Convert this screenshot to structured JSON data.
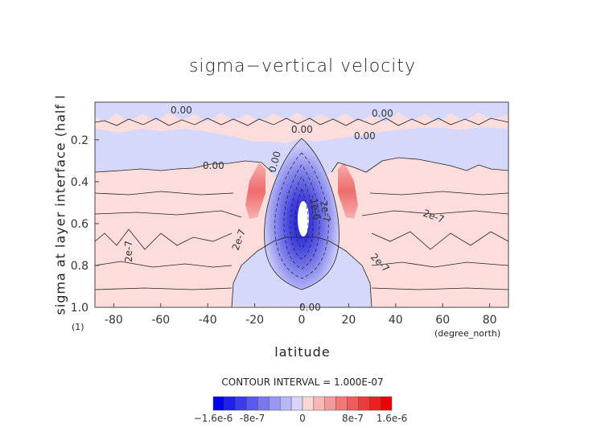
{
  "chart_data": {
    "type": "heatmap",
    "title": "sigma−vertical velocity",
    "xlabel": "latitude",
    "xunit": "(degree_north)",
    "ylabel": "sigma at layer interface (half l",
    "yunit": "(1)",
    "xlim": [
      -88,
      88
    ],
    "ylim": [
      1.0,
      0.02
    ],
    "xticks": [
      "-80",
      "-60",
      "-40",
      "-20",
      "0",
      "20",
      "40",
      "60",
      "80"
    ],
    "xtick_values": [
      -80,
      -60,
      -40,
      -20,
      0,
      20,
      40,
      60,
      80
    ],
    "yticks": [
      "0.2",
      "0.4",
      "0.6",
      "0.8",
      "1.0"
    ],
    "ytick_values": [
      0.2,
      0.4,
      0.6,
      0.8,
      1.0
    ],
    "contour_labels": [
      "0.00",
      "0.00",
      "0.00",
      "0.00",
      "0.00",
      "0.00",
      "0.00",
      "2e-7",
      "2e-7",
      "2e-7",
      "2e-7",
      "2e-7",
      "-1e-6"
    ],
    "contour_interval": "CONTOUR INTERVAL = 1.000E-07",
    "colorbar": {
      "labels": [
        "−1.6e-6",
        "-8e-7",
        "0",
        "8e-7",
        "1.6e-6"
      ],
      "colors": [
        "#0000ee",
        "#1f1fee",
        "#3b3bee",
        "#5a5af0",
        "#7878f2",
        "#9999f5",
        "#b8b8f8",
        "#d6d6fb",
        "#fbd6d6",
        "#f8b8b8",
        "#f59999",
        "#f27878",
        "#f05a5a",
        "#ee3b3b",
        "#ee1f1f",
        "#ee0000"
      ]
    },
    "colors": {
      "positive": "#fddcdc",
      "negative": "#d6d8fb",
      "strong_negative": "#3030d0",
      "strong_positive": "#ee6a6a"
    }
  }
}
